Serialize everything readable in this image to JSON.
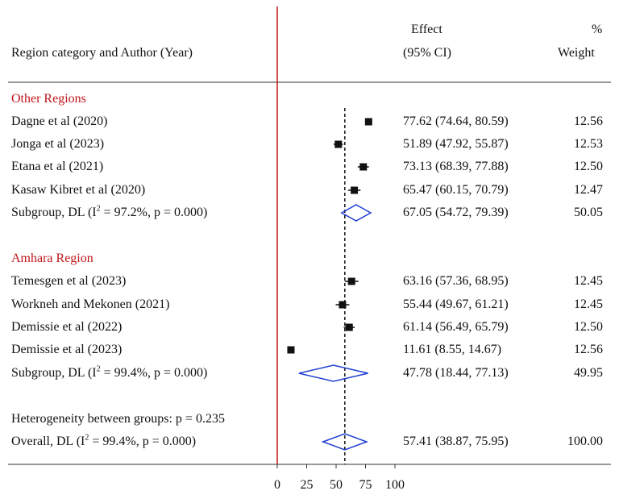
{
  "header": {
    "col_label": "Region category and Author (Year)",
    "effect_label_1": "Effect",
    "effect_label_2": "(95% CI)",
    "weight_label_1": "%",
    "weight_label_2": "Weight"
  },
  "groups": [
    {
      "name": "Other Regions",
      "studies": [
        {
          "label": "Dagne et al (2020)",
          "effect": "77.62 (74.64, 80.59)",
          "weight": "12.56"
        },
        {
          "label": "Jonga  et al (2023)",
          "effect": "51.89 (47.92, 55.87)",
          "weight": "12.53"
        },
        {
          "label": "Etana et al (2021)",
          "effect": "73.13 (68.39, 77.88)",
          "weight": "12.50"
        },
        {
          "label": "Kasaw Kibret et al (2020)",
          "effect": "65.47 (60.15, 70.79)",
          "weight": "12.47"
        }
      ],
      "subgroup": {
        "label_prefix": "Subgroup, DL (I",
        "sup": "2",
        "label_suffix": " = 97.2%, p = 0.000)",
        "effect": "67.05 (54.72, 79.39)",
        "weight": "50.05"
      }
    },
    {
      "name": "Amhara Region",
      "studies": [
        {
          "label": "Temesgen et al (2023)",
          "effect": "63.16 (57.36, 68.95)",
          "weight": "12.45"
        },
        {
          "label": "Workneh and Mekonen (2021)",
          "effect": "55.44 (49.67, 61.21)",
          "weight": "12.45"
        },
        {
          "label": "Demissie et al (2022)",
          "effect": "61.14 (56.49, 65.79)",
          "weight": "12.50"
        },
        {
          "label": "Demissie et al (2023)",
          "effect": "11.61 (8.55, 14.67)",
          "weight": "12.56"
        }
      ],
      "subgroup": {
        "label_prefix": "Subgroup, DL (I",
        "sup": "2",
        "label_suffix": " = 99.4%, p = 0.000)",
        "effect": "47.78 (18.44, 77.13)",
        "weight": "49.95"
      }
    }
  ],
  "heterogeneity": "Heterogeneity between groups: p = 0.235",
  "overall": {
    "label_prefix": "Overall, DL (I",
    "sup": "2",
    "label_suffix": " = 99.4%, p = 0.000)",
    "effect": "57.41 (38.87, 75.95)",
    "weight": "100.00"
  },
  "chart_data": {
    "type": "forest",
    "xlim": [
      0,
      100
    ],
    "x_ticks": [
      0,
      25,
      50,
      75,
      100
    ],
    "null_line": 0,
    "overall_line": 57.41,
    "colors": {
      "null_line": "#c0151b",
      "diamond": "#1f3fd1",
      "group_label": "#c0151b"
    },
    "studies": [
      {
        "label": "Dagne et al (2020)",
        "est": 77.62,
        "lo": 74.64,
        "hi": 80.59,
        "weight": 12.56,
        "group": "Other Regions"
      },
      {
        "label": "Jonga  et al (2023)",
        "est": 51.89,
        "lo": 47.92,
        "hi": 55.87,
        "weight": 12.53,
        "group": "Other Regions"
      },
      {
        "label": "Etana et al (2021)",
        "est": 73.13,
        "lo": 68.39,
        "hi": 77.88,
        "weight": 12.5,
        "group": "Other Regions"
      },
      {
        "label": "Kasaw Kibret et al (2020)",
        "est": 65.47,
        "lo": 60.15,
        "hi": 70.79,
        "weight": 12.47,
        "group": "Other Regions"
      },
      {
        "label": "Temesgen et al (2023)",
        "est": 63.16,
        "lo": 57.36,
        "hi": 68.95,
        "weight": 12.45,
        "group": "Amhara Region"
      },
      {
        "label": "Workneh and Mekonen (2021)",
        "est": 55.44,
        "lo": 49.67,
        "hi": 61.21,
        "weight": 12.45,
        "group": "Amhara Region"
      },
      {
        "label": "Demissie et al (2022)",
        "est": 61.14,
        "lo": 56.49,
        "hi": 65.79,
        "weight": 12.5,
        "group": "Amhara Region"
      },
      {
        "label": "Demissie et al (2023)",
        "est": 11.61,
        "lo": 8.55,
        "hi": 14.67,
        "weight": 12.56,
        "group": "Amhara Region"
      }
    ],
    "pooled": [
      {
        "label": "Subgroup, DL (Other Regions)",
        "est": 67.05,
        "lo": 54.72,
        "hi": 79.39,
        "weight": 50.05
      },
      {
        "label": "Subgroup, DL (Amhara Region)",
        "est": 47.78,
        "lo": 18.44,
        "hi": 77.13,
        "weight": 49.95
      },
      {
        "label": "Overall, DL",
        "est": 57.41,
        "lo": 38.87,
        "hi": 75.95,
        "weight": 100.0
      }
    ]
  }
}
